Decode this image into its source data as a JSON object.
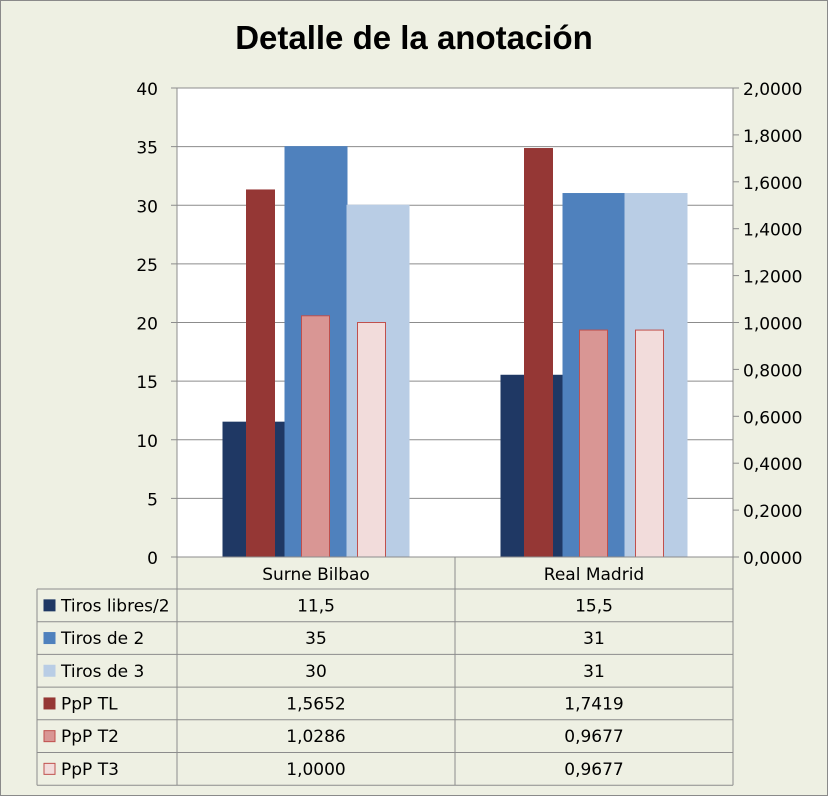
{
  "chart_data": {
    "type": "bar",
    "title": "Detalle de la anotación",
    "categories": [
      "Surne Bilbao",
      "Real Madrid"
    ],
    "y_left": {
      "min": 0,
      "max": 40,
      "ticks": [
        "0",
        "5",
        "10",
        "15",
        "20",
        "25",
        "30",
        "35",
        "40"
      ]
    },
    "y_right": {
      "min": 0,
      "max": 2,
      "ticks": [
        "0,0000",
        "0,2000",
        "0,4000",
        "0,6000",
        "0,8000",
        "1,0000",
        "1,2000",
        "1,4000",
        "1,6000",
        "1,8000",
        "2,0000"
      ]
    },
    "grid": true,
    "legend": "data-table",
    "series": [
      {
        "name": "Tiros libres/2",
        "axis": "left",
        "values": [
          11.5,
          15.5
        ],
        "labels": [
          "11,5",
          "15,5"
        ],
        "color": "#1f3864",
        "border": "#1f3864"
      },
      {
        "name": "Tiros de 2",
        "axis": "left",
        "values": [
          35,
          31
        ],
        "labels": [
          "35",
          "31"
        ],
        "color": "#4f81bd",
        "border": "#4f81bd"
      },
      {
        "name": "Tiros de 3",
        "axis": "left",
        "values": [
          30,
          31
        ],
        "labels": [
          "30",
          "31"
        ],
        "color": "#b9cde5",
        "border": "#b9cde5"
      },
      {
        "name": "PpP TL",
        "axis": "right",
        "values": [
          1.5652,
          1.7419
        ],
        "labels": [
          "1,5652",
          "1,7419"
        ],
        "color": "#953735",
        "border": "#953735"
      },
      {
        "name": "PpP T2",
        "axis": "right",
        "values": [
          1.0286,
          0.9677
        ],
        "labels": [
          "1,0286",
          "0,9677"
        ],
        "color": "#d99694",
        "border": "#c0504d"
      },
      {
        "name": "PpP T3",
        "axis": "right",
        "values": [
          1.0,
          0.9677
        ],
        "labels": [
          "1,0000",
          "0,9677"
        ],
        "color": "#f2dcdb",
        "border": "#c0504d"
      }
    ]
  }
}
